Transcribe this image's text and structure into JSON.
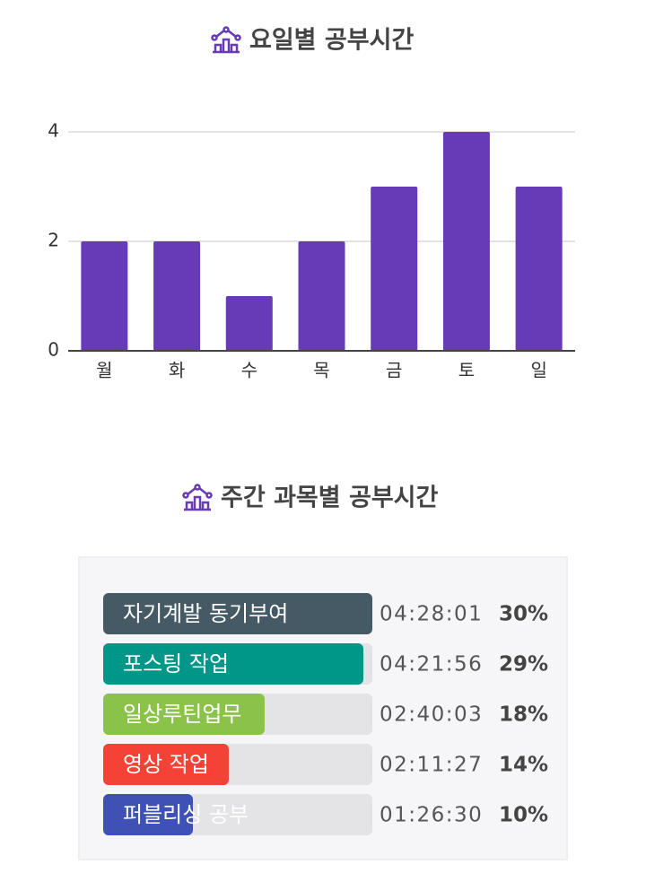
{
  "chart_data": [
    {
      "type": "bar",
      "title": "요일별 공부시간",
      "categories": [
        "월",
        "화",
        "수",
        "목",
        "금",
        "토",
        "일"
      ],
      "values": [
        2,
        2,
        1,
        2,
        3,
        4,
        3
      ],
      "color": "#673ab7",
      "ylim": [
        0,
        4
      ],
      "yticks": [
        0,
        2,
        4
      ],
      "grid": true
    },
    {
      "type": "progress",
      "title": "주간 과목별 공부시간",
      "categories": [
        "자기계발 동기부여",
        "포스팅 작업",
        "일상루틴업무",
        "영상 작업",
        "퍼블리싱 공부"
      ],
      "times": [
        "04:28:01",
        "04:21:56",
        "02:40:03",
        "02:11:27",
        "01:26:30"
      ],
      "values": [
        30,
        29,
        18,
        14,
        10
      ],
      "value_labels": [
        "30%",
        "29%",
        "18%",
        "14%",
        "10%"
      ],
      "colors": [
        "#455a64",
        "#009688",
        "#8bc34a",
        "#f44336",
        "#3f51b5"
      ]
    }
  ]
}
